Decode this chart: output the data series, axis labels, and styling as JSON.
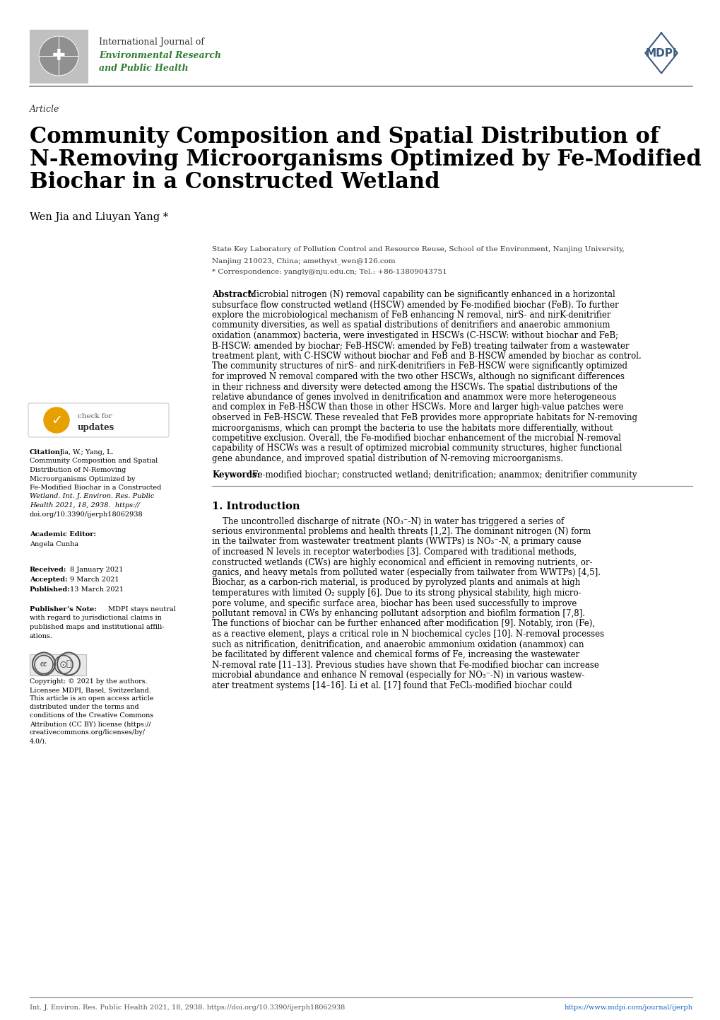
{
  "journal_line1": "International Journal of",
  "journal_line2": "Environmental Research",
  "journal_line3": "and Public Health",
  "journal_green": "#2e7d32",
  "mdpi_blue": "#3d5a80",
  "article_label": "Article",
  "title_line1": "Community Composition and Spatial Distribution of",
  "title_line2": "N-Removing Microorganisms Optimized by Fe-Modified",
  "title_line3": "Biochar in a Constructed Wetland",
  "authors": "Wen Jia and Liuyan Yang *",
  "affil1": "State Key Laboratory of Pollution Control and Resource Reuse, School of the Environment, Nanjing University,",
  "affil2": "Nanjing 210023, China; amethyst_wen@126.com",
  "corresp": "* Correspondence: yangly@nju.edu.cn; Tel.: +86-13809043751",
  "abstract_body": "Microbial nitrogen (N) removal capability can be significantly enhanced in a horizontal subsurface flow constructed wetland (HSCW) amended by Fe-modified biochar (FeB). To further explore the microbiological mechanism of FeB enhancing N removal, nirS- and nirK-denitrifier community diversities, as well as spatial distributions of denitrifiers and anaerobic ammonium oxidation (anammox) bacteria, were investigated in HSCWs (C-HSCW: without biochar and FeB; B-HSCW: amended by biochar; FeB-HSCW: amended by FeB) treating tailwater from a wastewater treatment plant, with C-HSCW without biochar and FeB and B-HSCW amended by biochar as control. The community structures of nirS- and nirK-denitrifiers in FeB-HSCW were significantly optimized for improved N removal compared with the two other HSCWs, although no significant differences in their richness and diversity were detected among the HSCWs. The spatial distributions of the relative abundance of genes involved in denitrification and anammox were more heterogeneous and complex in FeB-HSCW than those in other HSCWs. More and larger high-value patches were observed in FeB-HSCW. These revealed that FeB provides more appropriate habitats for N-removing microorganisms, which can prompt the bacteria to use the habitats more differentially, without competitive exclusion. Overall, the Fe-modified biochar enhancement of the microbial N-removal capability of HSCWs was a result of optimized microbial community structures, higher functional gene abundance, and improved spatial distribution of N-removing microorganisms.",
  "keywords_body": "Fe-modified biochar; constructed wetland; denitrification; anammox; denitrifier community",
  "citation_body": "Jia, W.; Yang, L.\nCommunity Composition and Spatial\nDistribution of N-Removing\nMicroorganisms Optimized by\nFe-Modified Biochar in a Constructed\nWetland. Int. J. Environ. Res. Public\nHealth 2021, 18, 2938.  https://\ndoi.org/10.3390/ijerph18062938",
  "editor_body": "Angela Cunha",
  "received": "8 January 2021",
  "accepted": "9 March 2021",
  "published": "13 March 2021",
  "pub_note": "MDPI stays neutral with regard to jurisdictional claims in published maps and institutional affiliations.",
  "copyright_body": "Copyright: © 2021 by the authors.\nLicensee MDPI, Basel, Switzerland.\nThis article is an open access article\ndistributed under the terms and\nconditions of the Creative Commons\nAttribution (CC BY) license (https://\ncreativecommons.org/licenses/by/\n4.0/).",
  "sec1_title": "1. Introduction",
  "intro_text_line1": "    The uncontrolled discharge of nitrate (NO₃⁻-N) in water has triggered a series of",
  "intro_text_line2": "serious environmental problems and health threats [1,2]. The dominant nitrogen (N) form",
  "intro_text_line3": "in the tailwater from wastewater treatment plants (WWTPs) is NO₃⁻-N, a primary cause",
  "intro_text_line4": "of increased N levels in receptor waterbodies [3]. Compared with traditional methods,",
  "intro_text_line5": "constructed wetlands (CWs) are highly economical and efficient in removing nutrients, or-",
  "intro_text_line6": "ganics, and heavy metals from polluted water (especially from tailwater from WWTPs) [4,5].",
  "intro_text_line7": "Biochar, as a carbon-rich material, is produced by pyrolyzed plants and animals at high",
  "intro_text_line8": "temperatures with limited O₂ supply [6]. Due to its strong physical stability, high micro-",
  "intro_text_line9": "pore volume, and specific surface area, biochar has been used successfully to improve",
  "intro_text_line10": "pollutant removal in CWs by enhancing pollutant adsorption and biofilm formation [7,8].",
  "intro_text_line11": "The functions of biochar can be further enhanced after modification [9]. Notably, iron (Fe),",
  "intro_text_line12": "as a reactive element, plays a critical role in N biochemical cycles [10]. N-removal processes",
  "intro_text_line13": "such as nitrification, denitrification, and anaerobic ammonium oxidation (anammox) can",
  "intro_text_line14": "be facilitated by different valence and chemical forms of Fe, increasing the wastewater",
  "intro_text_line15": "N-removal rate [11–13]. Previous studies have shown that Fe-modified biochar can increase",
  "intro_text_line16": "microbial abundance and enhance N removal (especially for NO₃⁻-N) in various wastew-",
  "intro_text_line17": "ater treatment systems [14–16]. Li et al. [17] found that FeCl₃-modified biochar could",
  "footer_left": "Int. J. Environ. Res. Public Health 2021, 18, 2938. https://doi.org/10.3390/ijerph18062938",
  "footer_right": "https://www.mdpi.com/journal/ijerph",
  "abstract_lines": [
    "Microbial nitrogen (N) removal capability can be significantly enhanced in a horizontal",
    "subsurface flow constructed wetland (HSCW) amended by Fe-modified biochar (FeB). To further",
    "explore the microbiological mechanism of FeB enhancing N removal, nirS- and nirK-denitrifier",
    "community diversities, as well as spatial distributions of denitrifiers and anaerobic ammonium",
    "oxidation (anammox) bacteria, were investigated in HSCWs (C-HSCW: without biochar and FeB;",
    "B-HSCW: amended by biochar; FeB-HSCW: amended by FeB) treating tailwater from a wastewater",
    "treatment plant, with C-HSCW without biochar and FeB and B-HSCW amended by biochar as control.",
    "The community structures of nirS- and nirK-denitrifiers in FeB-HSCW were significantly optimized",
    "for improved N removal compared with the two other HSCWs, although no significant differences",
    "in their richness and diversity were detected among the HSCWs. The spatial distributions of the",
    "relative abundance of genes involved in denitrification and anammox were more heterogeneous",
    "and complex in FeB-HSCW than those in other HSCWs. More and larger high-value patches were",
    "observed in FeB-HSCW. These revealed that FeB provides more appropriate habitats for N-removing",
    "microorganisms, which can prompt the bacteria to use the habitats more differentially, without",
    "competitive exclusion. Overall, the Fe-modified biochar enhancement of the microbial N-removal",
    "capability of HSCWs was a result of optimized microbial community structures, higher functional",
    "gene abundance, and improved spatial distribution of N-removing microorganisms."
  ]
}
